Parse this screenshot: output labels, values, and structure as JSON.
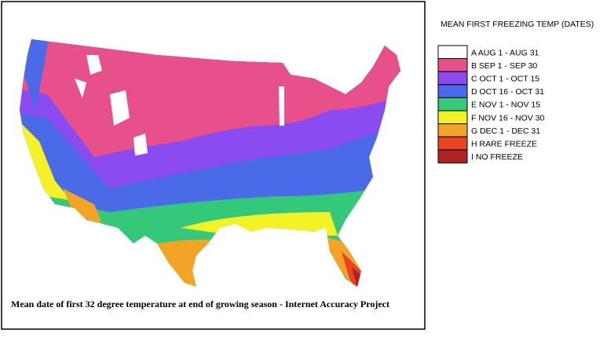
{
  "legend": {
    "title": "MEAN FIRST FREEZING TEMP (DATES)",
    "items": [
      {
        "label": "A AUG 1 - AUG 31",
        "color": "#ffffff"
      },
      {
        "label": "B SEP 1 - SEP 30",
        "color": "#e8508c"
      },
      {
        "label": "C OCT 1 - OCT 15",
        "color": "#8a4cf0"
      },
      {
        "label": "D OCT 16 - OCT 31",
        "color": "#4a6ae8"
      },
      {
        "label": "E NOV 1 - NOV 15",
        "color": "#34c87a"
      },
      {
        "label": "F NOV 16 - NOV 30",
        "color": "#f2f224"
      },
      {
        "label": "G DEC 1 - DEC 31",
        "color": "#f2a426"
      },
      {
        "label": "H RARE FREEZE",
        "color": "#ea4422"
      },
      {
        "label": "I NO FREEZE",
        "color": "#b22222"
      }
    ]
  },
  "caption": "Mean date of first 32 degree temperature at end of growing season -  Internet Accuracy Project"
}
